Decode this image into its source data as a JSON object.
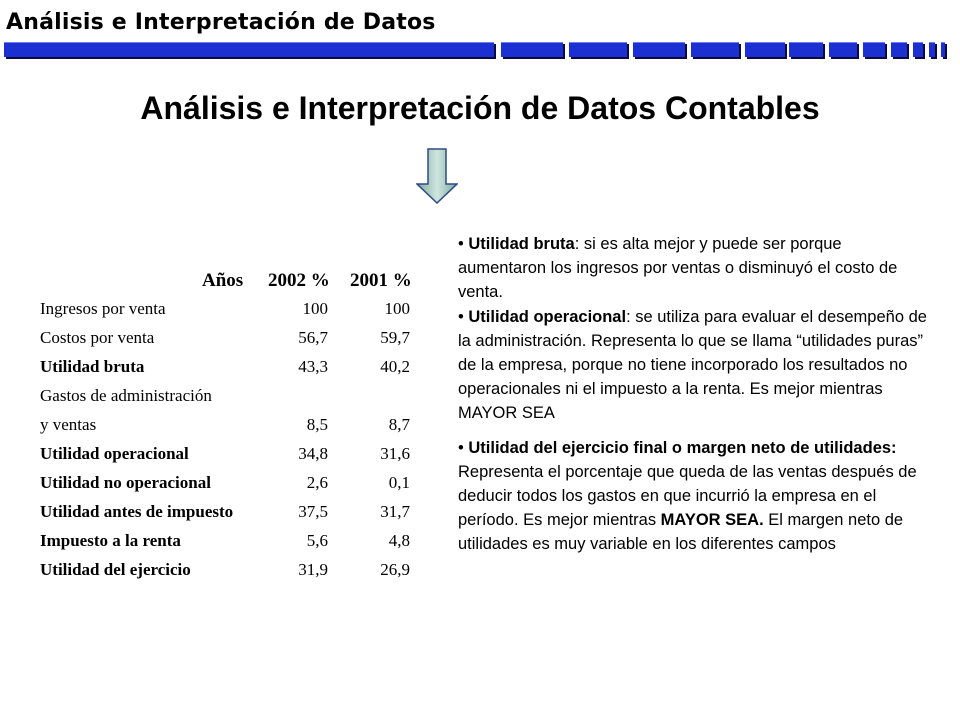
{
  "header": {
    "title": "Análisis e Interpretación de Datos",
    "bar_color": "#1c2fd0"
  },
  "main_title": "Análisis e Interpretación de Datos Contables",
  "arrow_icon": "down-arrow-icon",
  "table": {
    "headers": [
      "Años",
      "2002 %",
      "2001 %"
    ],
    "rows": [
      {
        "label": "Ingresos por venta",
        "v2002": "100",
        "v2001": "100"
      },
      {
        "label": "Costos por venta",
        "v2002": "56,7",
        "v2001": "59,7"
      },
      {
        "label": "Utilidad bruta",
        "v2002": "43,3",
        "v2001": "40,2"
      },
      {
        "label": "Gastos de administración",
        "v2002": "",
        "v2001": ""
      },
      {
        "label": "y ventas",
        "v2002": "8,5",
        "v2001": "8,7"
      },
      {
        "label": "Utilidad operacional",
        "v2002": "34,8",
        "v2001": "31,6"
      },
      {
        "label": "Utilidad no operacional",
        "v2002": "2,6",
        "v2001": "0,1"
      },
      {
        "label": "Utilidad antes de impuesto",
        "v2002": "37,5",
        "v2001": "31,7"
      },
      {
        "label": "Impuesto a la renta",
        "v2002": "5,6",
        "v2001": "4,8"
      },
      {
        "label": "Utilidad del ejercicio",
        "v2002": "31,9",
        "v2001": "26,9"
      }
    ]
  },
  "bullets": {
    "b1_term": "Utilidad bruta",
    "b1_text": ": si es alta mejor y puede ser porque aumentaron los ingresos por ventas o disminuyó el costo de venta.",
    "b2_term": "Utilidad operacional",
    "b2_text": ": se utiliza para evaluar el desempeño de la administración. Representa lo que se llama “utilidades puras” de la empresa, porque no tiene incorporado los resultados no operacionales ni el impuesto a la renta. Es mejor mientras MAYOR SEA",
    "b3_term": "Utilidad del ejercicio final o margen neto de utilidades:",
    "b3_text": " Representa el porcentaje que queda de las ventas después de deducir todos los gastos en que incurrió la empresa en el período. Es mejor mientras ",
    "b3_emph": "MAYOR SEA.",
    "b3_tail": " El margen neto de utilidades es muy variable en los diferentes campos"
  }
}
